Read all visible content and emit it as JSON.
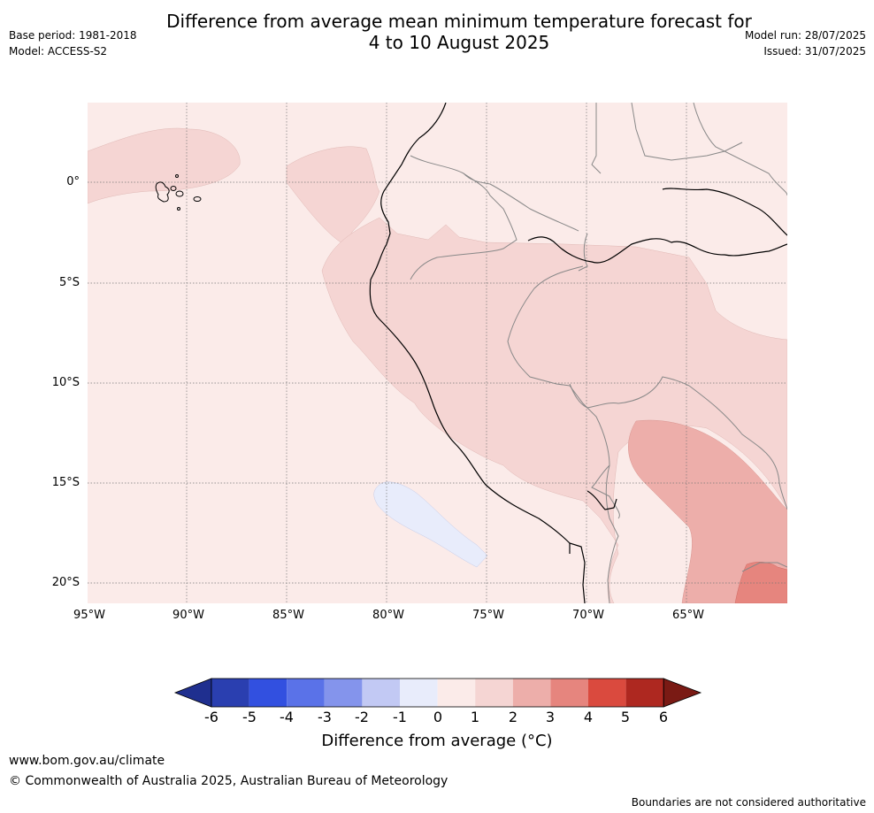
{
  "header": {
    "title_line1": "Difference from average mean minimum temperature forecast for",
    "title_line2": "4 to 10 August 2025",
    "base_period": "Base period: 1981-2018",
    "model": "Model: ACCESS-S2",
    "model_run": "Model run: 28/07/2025",
    "issued": "Issued: 31/07/2025"
  },
  "map": {
    "region": "Western South America",
    "lon_labels": [
      "95°W",
      "90°W",
      "85°W",
      "80°W",
      "75°W",
      "70°W",
      "65°W"
    ],
    "lat_labels": [
      "0°",
      "5°S",
      "10°S",
      "15°S",
      "20°S"
    ],
    "lon_range": [
      -95,
      -60
    ],
    "lat_range": [
      -21,
      4
    ],
    "background_anomaly_class": "0 to 1",
    "features": [
      {
        "name": "anomaly-1-2-galapagos",
        "class": "1 to 2"
      },
      {
        "name": "anomaly-1-2-coastal-ecuador",
        "class": "1 to 2"
      },
      {
        "name": "anomaly-1-2-andes-amazon",
        "class": "1 to 2"
      },
      {
        "name": "anomaly-2-3-bolivia",
        "class": "2 to 3"
      },
      {
        "name": "anomaly-3-4-southeast-corner",
        "class": "3 to 4"
      },
      {
        "name": "anomaly-neg1-0-offshore-peru",
        "class": "-1 to 0"
      }
    ]
  },
  "colorbar": {
    "ticks": [
      "-6",
      "-5",
      "-4",
      "-3",
      "-2",
      "-1",
      "0",
      "1",
      "2",
      "3",
      "4",
      "5",
      "6"
    ],
    "colors": [
      "#1f2f8f",
      "#2a3fb0",
      "#3250e0",
      "#5a72e8",
      "#8494ec",
      "#c2c9f4",
      "#e8ecfb",
      "#fbebe9",
      "#f5d5d3",
      "#edaeaa",
      "#e6857e",
      "#da4a3e",
      "#ae2820",
      "#7a1a14"
    ],
    "title": "Difference from average (°C)"
  },
  "footer": {
    "url": "www.bom.gov.au/climate",
    "copyright": "© Commonwealth of Australia 2025, Australian Bureau of Meteorology",
    "disclaimer": "Boundaries are not considered authoritative"
  }
}
